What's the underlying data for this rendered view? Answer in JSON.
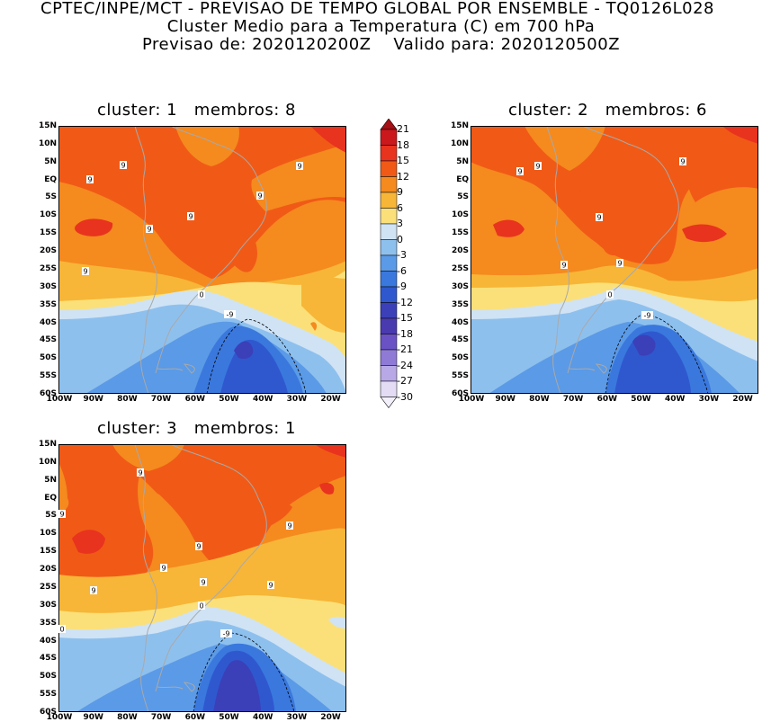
{
  "header": {
    "line1": "CPTEC/INPE/MCT - PREVISAO DE TEMPO GLOBAL POR ENSEMBLE - TQ0126L028",
    "line2": "Cluster Medio para a Temperatura (C) em 700 hPa",
    "line3": "Previsao de: 2020120200Z    Valido para: 2020120500Z"
  },
  "lat_labels": [
    "15N",
    "10N",
    "5N",
    "EQ",
    "5S",
    "10S",
    "15S",
    "20S",
    "25S",
    "30S",
    "35S",
    "40S",
    "45S",
    "50S",
    "55S",
    "60S"
  ],
  "lon_labels": [
    "100W",
    "90W",
    "80W",
    "70W",
    "60W",
    "50W",
    "40W",
    "30W",
    "20W"
  ],
  "colorbar": {
    "levels": [
      "21",
      "18",
      "15",
      "12",
      "9",
      "6",
      "3",
      "0",
      "-3",
      "-6",
      "-9",
      "-12",
      "-15",
      "-18",
      "-21",
      "-24",
      "-27",
      "-30"
    ],
    "colors": [
      "#a50f15",
      "#cb181d",
      "#e8331e",
      "#f05a16",
      "#f58a1f",
      "#f7b637",
      "#fbe07a",
      "#cfe3f5",
      "#8ec0ee",
      "#5b9ae6",
      "#3a78dd",
      "#2f58cf",
      "#3b40b8",
      "#4a3ab0",
      "#6a52c4",
      "#8f7bd6",
      "#b8a8e6",
      "#e3dcf4"
    ]
  },
  "panels": [
    {
      "title": "cluster: 1   membros: 8",
      "contour_labels": [
        "9",
        "9",
        "9",
        "9",
        "9",
        "9",
        "9",
        "0",
        "-9"
      ]
    },
    {
      "title": "cluster: 2   membros: 6",
      "contour_labels": [
        "9",
        "9",
        "9",
        "9",
        "9",
        "9",
        "0",
        "-9"
      ]
    },
    {
      "title": "cluster: 3   membros: 1",
      "contour_labels": [
        "9",
        "9",
        "9",
        "9",
        "9",
        "9",
        "9",
        "9",
        "0",
        "-9",
        "0"
      ]
    }
  ]
}
